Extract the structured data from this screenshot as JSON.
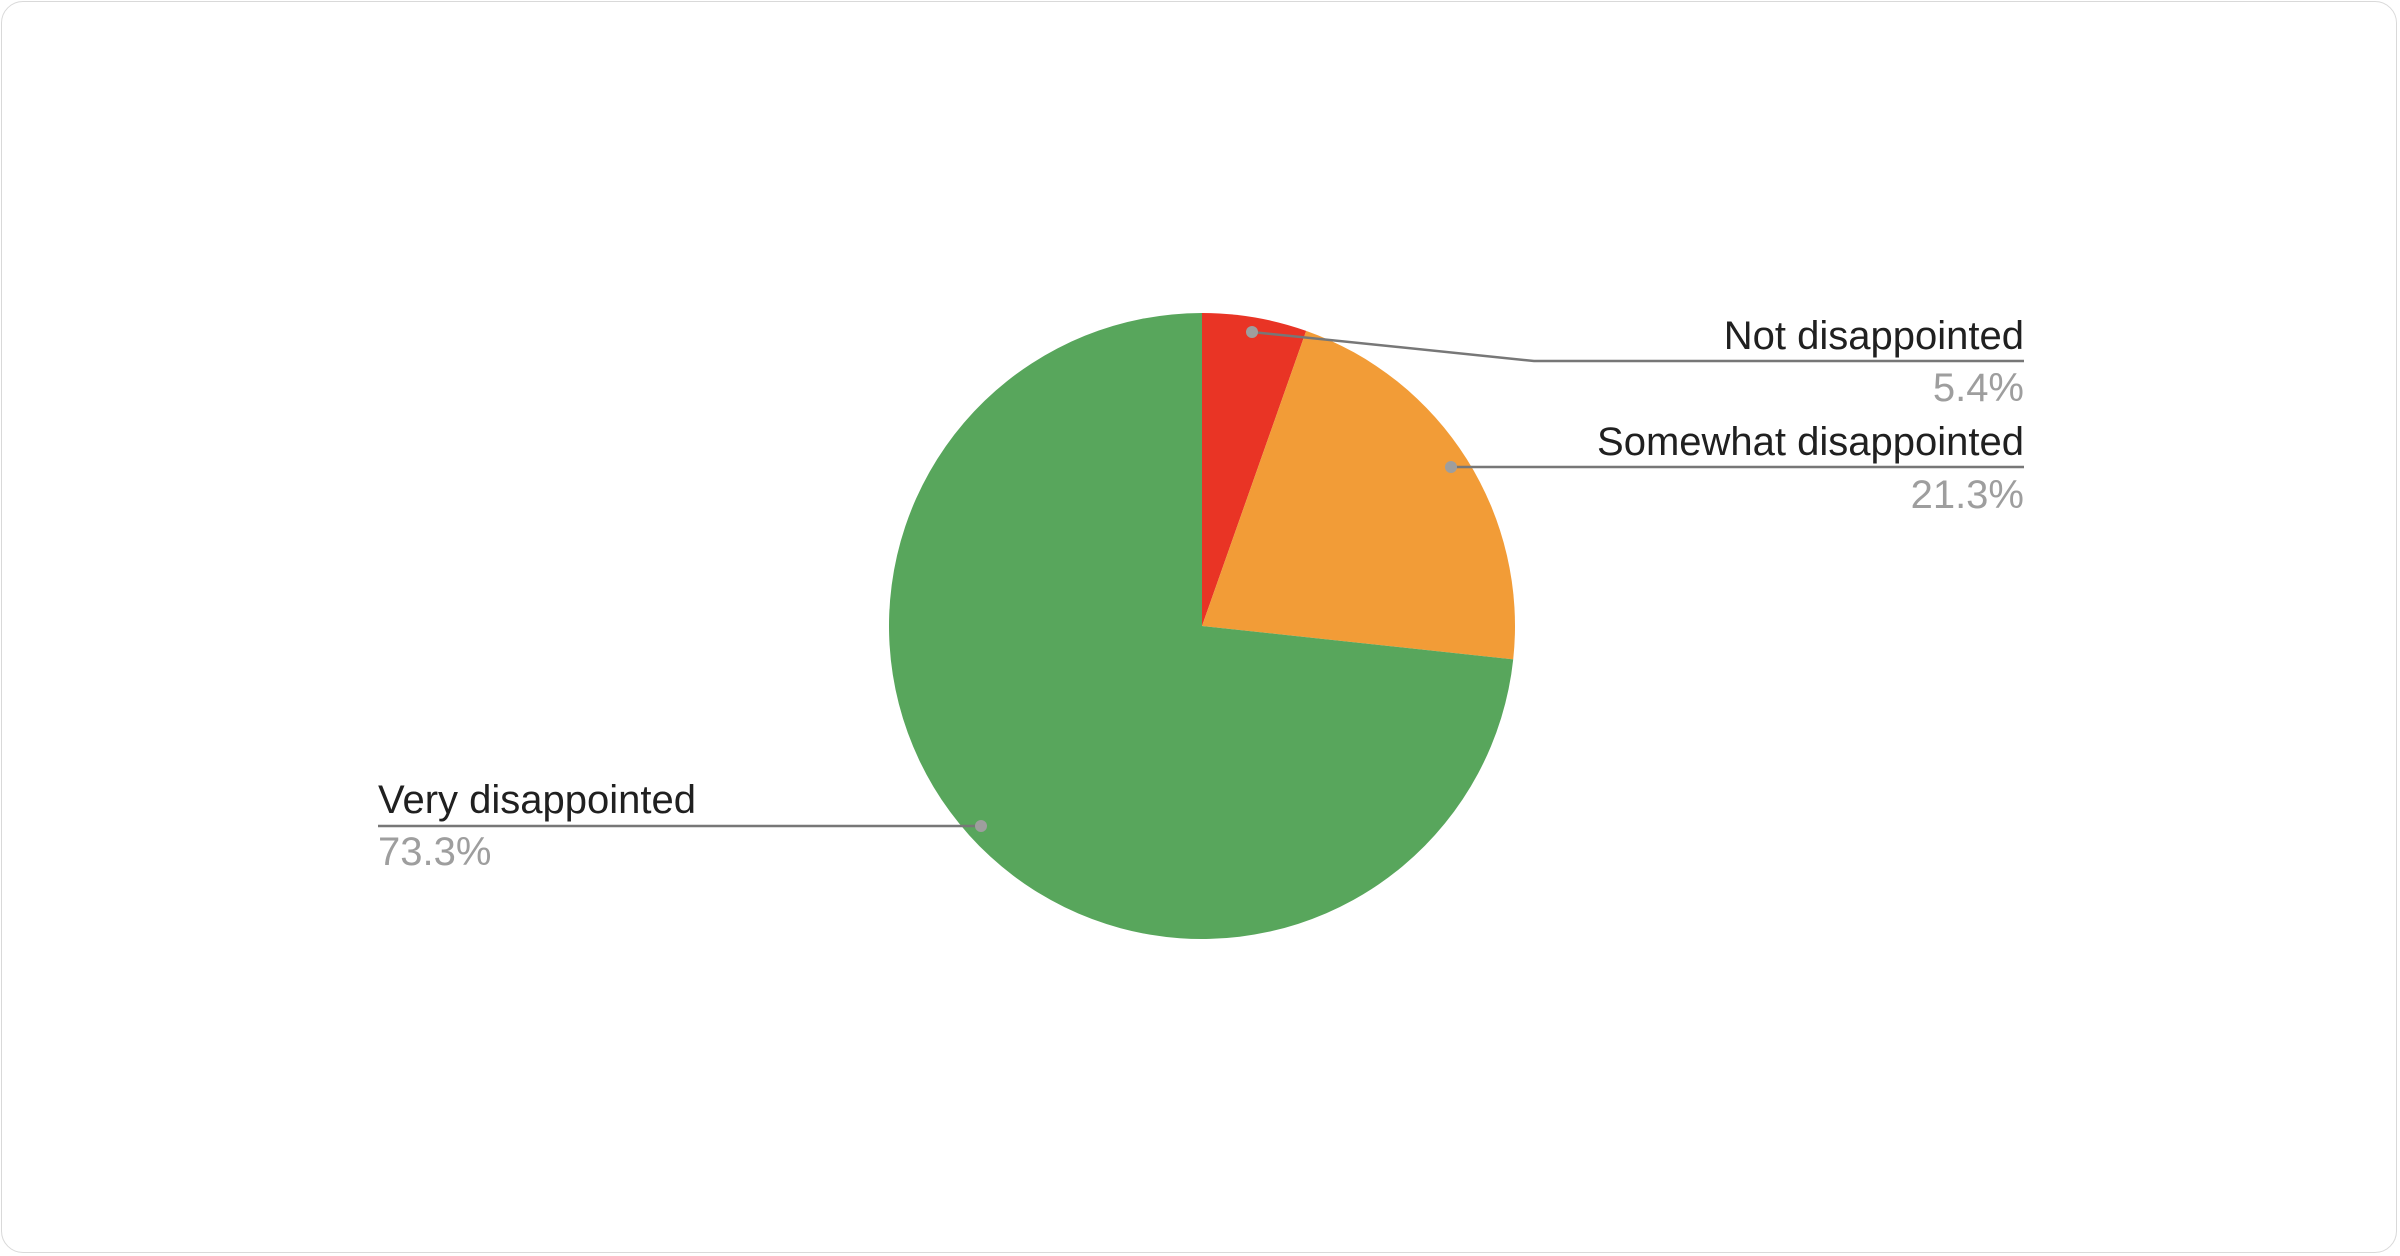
{
  "chart_data": {
    "type": "pie",
    "title": "",
    "start_angle": "top",
    "direction": "clockwise",
    "slices": [
      {
        "label": "Not disappointed",
        "value": 5.4,
        "value_label": "5.4%",
        "color": "#e93425"
      },
      {
        "label": "Somewhat disappointed",
        "value": 21.3,
        "value_label": "21.3%",
        "color": "#f29c37"
      },
      {
        "label": "Very disappointed",
        "value": 73.3,
        "value_label": "73.3%",
        "color": "#58a65c"
      }
    ],
    "legend": "callout labels"
  }
}
